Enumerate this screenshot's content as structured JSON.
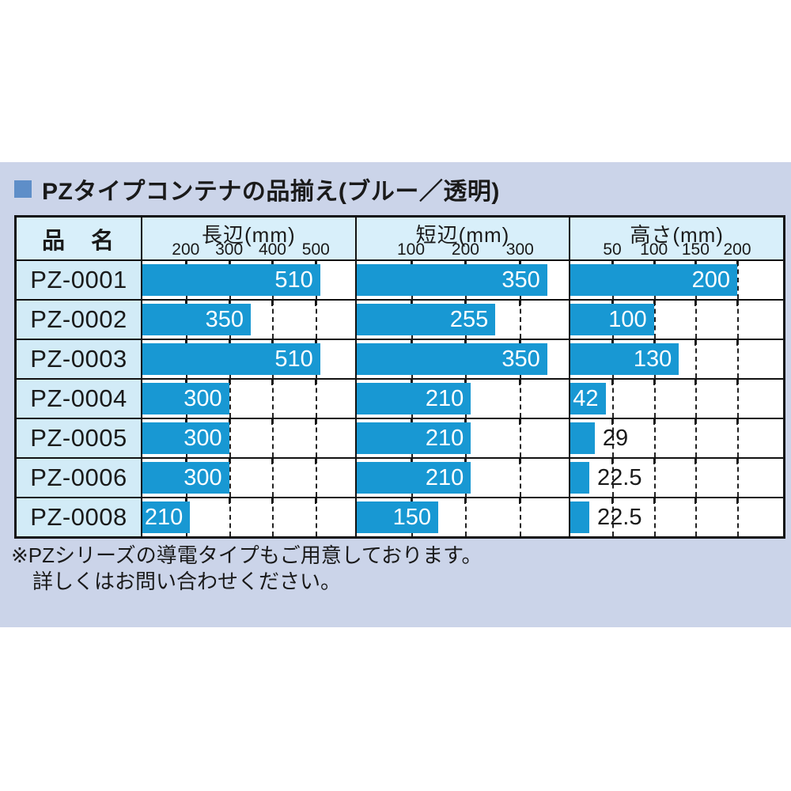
{
  "title": {
    "text": "PZタイプコンテナの品揃え(ブルー／透明)"
  },
  "table": {
    "name_col_header": "品　名"
  },
  "chart_data": {
    "type": "bar",
    "orientation": "horizontal",
    "unit": "mm",
    "grid": "dashed-vertical",
    "columns": [
      {
        "label": "長辺(mm)",
        "ticks": [
          200,
          300,
          400,
          500
        ],
        "axis_min": 100,
        "axis_max": 590
      },
      {
        "label": "短辺(mm)",
        "ticks": [
          100,
          200,
          300
        ],
        "axis_min": 0,
        "axis_max": 390
      },
      {
        "label": "高さ(mm)",
        "ticks": [
          50,
          100,
          150,
          200
        ],
        "axis_min": 0,
        "axis_max": 255
      }
    ],
    "rows": [
      {
        "name": "PZ-0001",
        "bars": [
          {
            "value": 510,
            "label": "510",
            "label_out": false
          },
          {
            "value": 350,
            "label": "350",
            "label_out": false
          },
          {
            "value": 200,
            "label": "200",
            "label_out": false
          }
        ]
      },
      {
        "name": "PZ-0002",
        "bars": [
          {
            "value": 350,
            "label": "350",
            "label_out": false
          },
          {
            "value": 255,
            "label": "255",
            "label_out": false
          },
          {
            "value": 100,
            "label": "100",
            "label_out": false
          }
        ]
      },
      {
        "name": "PZ-0003",
        "bars": [
          {
            "value": 510,
            "label": "510",
            "label_out": false
          },
          {
            "value": 350,
            "label": "350",
            "label_out": false
          },
          {
            "value": 130,
            "label": "130",
            "label_out": false
          }
        ]
      },
      {
        "name": "PZ-0004",
        "bars": [
          {
            "value": 300,
            "label": "300",
            "label_out": false
          },
          {
            "value": 210,
            "label": "210",
            "label_out": false
          },
          {
            "value": 42,
            "label": "42",
            "label_out": false
          }
        ]
      },
      {
        "name": "PZ-0005",
        "bars": [
          {
            "value": 300,
            "label": "300",
            "label_out": false
          },
          {
            "value": 210,
            "label": "210",
            "label_out": false
          },
          {
            "value": 29,
            "label": "29",
            "label_out": true
          }
        ]
      },
      {
        "name": "PZ-0006",
        "bars": [
          {
            "value": 300,
            "label": "300",
            "label_out": false
          },
          {
            "value": 210,
            "label": "210",
            "label_out": false
          },
          {
            "value": 22.5,
            "label": "22.5",
            "label_out": true
          }
        ]
      },
      {
        "name": "PZ-0008",
        "bars": [
          {
            "value": 210,
            "label": "210",
            "label_out": false
          },
          {
            "value": 150,
            "label": "150",
            "label_out": false
          },
          {
            "value": 22.5,
            "label": "22.5",
            "label_out": true
          }
        ]
      }
    ]
  },
  "footnote": {
    "line1": "※PZシリーズの導電タイプもご用意しております。",
    "line2": "詳しくはお問い合わせください。"
  },
  "colors": {
    "bar": "#1898D3",
    "bar_label": "#FFFFFF",
    "panel_bg": "#CBD4E9",
    "header_bg": "#D8EFFA",
    "name_cell_bg": "#D2EBF7",
    "border": "#121212",
    "accent_square": "#5E8EC8",
    "text": "#1A1A1A"
  }
}
